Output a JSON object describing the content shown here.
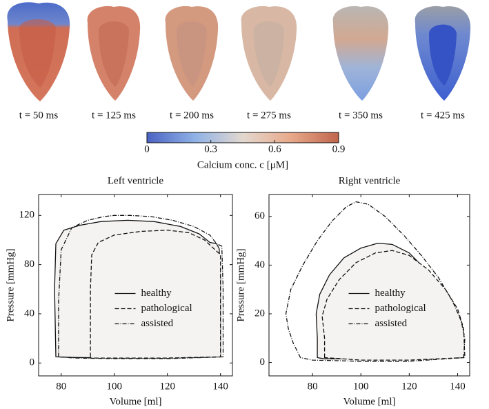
{
  "frames": [
    "t = 50  ms",
    "t = 125  ms",
    "t = 200  ms",
    "t = 275  ms",
    "t = 350  ms",
    "t = 425  ms"
  ],
  "colorbar": {
    "label": "Calcium conc. c [μM]",
    "lim": [
      0,
      0.9
    ],
    "ticks": [
      0,
      0.3,
      0.6,
      0.9
    ],
    "colors": [
      "#4a62c4",
      "#8fb2e6",
      "#e3d8cf",
      "#e8a98a",
      "#c0654c"
    ]
  },
  "chart_data": [
    {
      "type": "line",
      "title": "Left ventricle",
      "x_label": "Volume [ml]",
      "y_label": "Pressure [mmHg]",
      "xlim": [
        71.5,
        144.5
      ],
      "ylim": [
        -10.5,
        137
      ],
      "xticks": [
        80,
        100,
        120,
        140
      ],
      "yticks": [
        0,
        40,
        80,
        120
      ],
      "legend": "center",
      "series": [
        {
          "name": "healthy",
          "color": "#111111",
          "dash": "none",
          "fill": "#f4f3f1",
          "x": [
            78,
            77.5,
            78,
            81,
            87,
            95,
            105,
            115,
            125,
            132,
            136,
            138.5,
            139.5,
            140,
            140,
            120,
            100,
            85,
            78
          ],
          "values": [
            5,
            60,
            97,
            108,
            112,
            115,
            116,
            115,
            111,
            105,
            98,
            97,
            93,
            70,
            5,
            4,
            4,
            4.5,
            5
          ]
        },
        {
          "name": "pathological",
          "color": "#111111",
          "dash": "6,3",
          "fill": "#f4f3f1",
          "x": [
            91,
            91,
            91.5,
            94,
            100,
            110,
            120,
            128,
            134,
            137,
            139,
            140,
            140,
            120,
            100,
            91
          ],
          "values": [
            5,
            60,
            88,
            98,
            104,
            107,
            108,
            106,
            100,
            94,
            90,
            88,
            5,
            4,
            4,
            4
          ]
        },
        {
          "name": "assisted",
          "color": "#111111",
          "dash": "6,2,1,2",
          "fill": "none",
          "x": [
            79,
            79,
            80,
            84,
            90,
            96,
            100,
            106,
            114,
            122,
            130,
            136,
            138.5,
            140.5,
            141,
            141,
            120,
            100,
            85,
            79
          ],
          "values": [
            5,
            50,
            92,
            110,
            116,
            119,
            120,
            120,
            119,
            116,
            111,
            104,
            97,
            95,
            60,
            5,
            3.5,
            3.5,
            4,
            5
          ]
        }
      ]
    },
    {
      "type": "line",
      "title": "Right ventricle",
      "x_label": "Volume [ml]",
      "y_label": "Pressure [mmHg]",
      "xlim": [
        62,
        145
      ],
      "ylim": [
        -5.5,
        69
      ],
      "xticks": [
        80,
        100,
        120,
        140
      ],
      "yticks": [
        0,
        20,
        40,
        60
      ],
      "legend": "center",
      "series": [
        {
          "name": "healthy",
          "color": "#111111",
          "dash": "none",
          "fill": "#f4f3f1",
          "x": [
            82,
            82,
            81.5,
            83,
            87,
            93,
            100,
            107,
            113,
            120,
            128,
            135,
            140,
            142,
            142,
            120,
            100,
            85,
            82
          ],
          "values": [
            2,
            10,
            20,
            28,
            36,
            43,
            47,
            49,
            48.5,
            45,
            37,
            28,
            20,
            14,
            3,
            1.5,
            1.5,
            1.5,
            2
          ]
        },
        {
          "name": "pathological",
          "color": "#111111",
          "dash": "6,3",
          "fill": "#f4f3f1",
          "x": [
            85,
            85,
            84,
            86,
            91,
            98,
            106,
            113,
            120,
            128,
            135,
            140,
            142.5,
            143,
            120,
            100,
            85
          ],
          "values": [
            2,
            10,
            19,
            26,
            34,
            41,
            45,
            46,
            44,
            38,
            30,
            22,
            14,
            2,
            1,
            1,
            2
          ]
        },
        {
          "name": "assisted",
          "color": "#111111",
          "dash": "6,2,1,2",
          "fill": "none",
          "x": [
            75,
            72,
            70,
            69,
            71,
            76,
            82,
            88,
            94,
            98,
            103,
            110,
            118,
            125,
            132,
            138,
            141.5,
            143,
            142.5,
            120,
            100,
            80,
            75
          ],
          "values": [
            2,
            8,
            14,
            20,
            30,
            40,
            50,
            58,
            64,
            66,
            65,
            60,
            52,
            44,
            35,
            25,
            17,
            10,
            2,
            0.5,
            0.5,
            1,
            2
          ]
        }
      ]
    }
  ]
}
